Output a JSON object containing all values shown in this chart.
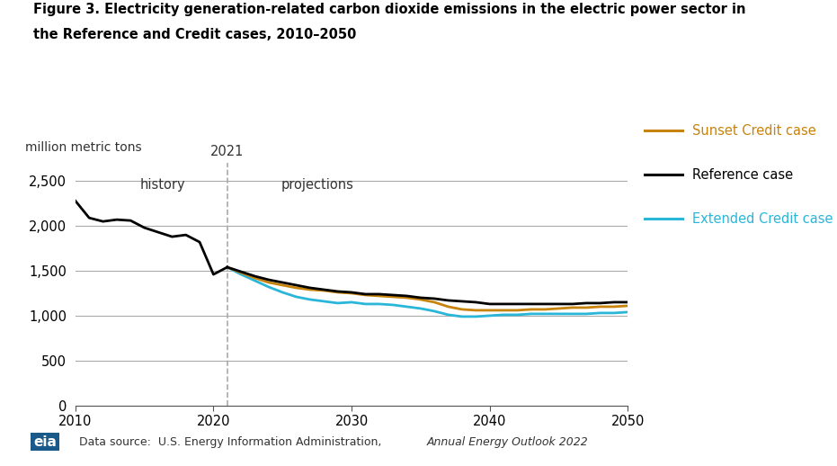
{
  "title_line1": "Figure 3. Electricity generation-related carbon dioxide emissions in the electric power sector in",
  "title_line2": "the Reference and Credit cases, 2010–2050",
  "ylabel": "million metric tons",
  "datasource": "Data source:  U.S. Energy Information Administration, ",
  "datasource_italic": "Annual Energy Outlook 2022",
  "divider_year": 2021,
  "history_label": "history",
  "projections_label": "projections",
  "ylim": [
    0,
    2700
  ],
  "yticks": [
    0,
    500,
    1000,
    1500,
    2000,
    2500
  ],
  "ytick_labels": [
    "0",
    "500",
    "1,000",
    "1,500",
    "2,000",
    "2,500"
  ],
  "xlim": [
    2010,
    2050
  ],
  "xticks": [
    2010,
    2020,
    2030,
    2040,
    2050
  ],
  "background_color": "#ffffff",
  "grid_color": "#aaaaaa",
  "reference_color": "#000000",
  "sunset_color": "#c8830a",
  "extended_color": "#29b6d8",
  "legend_labels": [
    "Sunset Credit case",
    "Reference case",
    "Extended Credit case"
  ],
  "legend_colors": [
    "#c8830a",
    "#000000",
    "#29b6d8"
  ],
  "years_history": [
    2010,
    2011,
    2012,
    2013,
    2014,
    2015,
    2016,
    2017,
    2018,
    2019,
    2020,
    2021
  ],
  "reference_history": [
    2280,
    2090,
    2050,
    2070,
    2060,
    1980,
    1930,
    1880,
    1900,
    1820,
    1460,
    1540
  ],
  "years_projection": [
    2021,
    2022,
    2023,
    2024,
    2025,
    2026,
    2027,
    2028,
    2029,
    2030,
    2031,
    2032,
    2033,
    2034,
    2035,
    2036,
    2037,
    2038,
    2039,
    2040,
    2041,
    2042,
    2043,
    2044,
    2045,
    2046,
    2047,
    2048,
    2049,
    2050
  ],
  "reference_projection": [
    1540,
    1490,
    1440,
    1400,
    1370,
    1340,
    1310,
    1290,
    1270,
    1260,
    1240,
    1240,
    1230,
    1220,
    1200,
    1190,
    1170,
    1160,
    1150,
    1130,
    1130,
    1130,
    1130,
    1130,
    1130,
    1130,
    1140,
    1140,
    1150,
    1150
  ],
  "sunset_projection": [
    1540,
    1480,
    1420,
    1370,
    1340,
    1310,
    1290,
    1280,
    1260,
    1250,
    1230,
    1220,
    1210,
    1200,
    1180,
    1150,
    1100,
    1070,
    1060,
    1060,
    1060,
    1060,
    1070,
    1070,
    1080,
    1090,
    1090,
    1100,
    1100,
    1110
  ],
  "extended_projection": [
    1540,
    1460,
    1390,
    1320,
    1260,
    1210,
    1180,
    1160,
    1140,
    1150,
    1130,
    1130,
    1120,
    1100,
    1080,
    1050,
    1010,
    990,
    990,
    1000,
    1010,
    1010,
    1020,
    1020,
    1020,
    1020,
    1020,
    1030,
    1030,
    1040
  ]
}
